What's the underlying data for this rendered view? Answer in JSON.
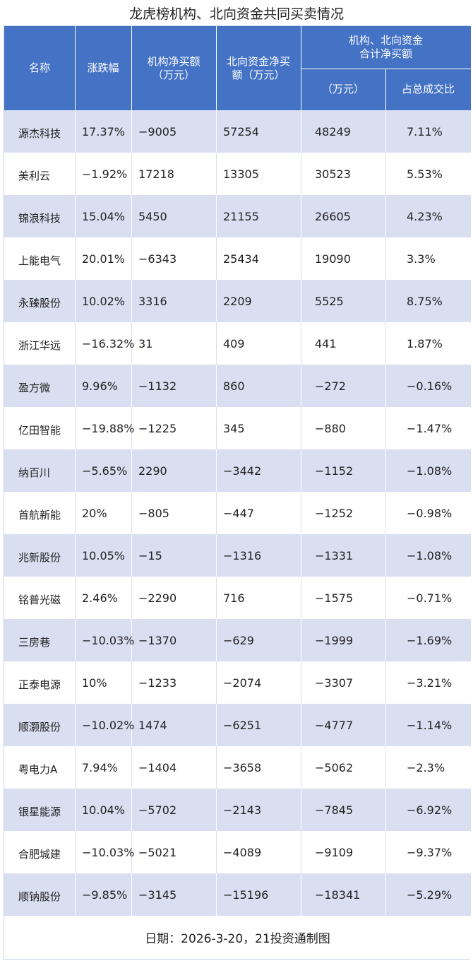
{
  "title": "龙虎榜机构、北向资金共同买卖情况",
  "header": {
    "name": "名称",
    "change": "涨跌幅",
    "inst_net": "机构净买额\n（万元）",
    "north_net": "北向资金净买\n额（万元）",
    "combined_group": "机构、北向资金\n合计净买额",
    "combined_amount": "（万元）",
    "combined_ratio": "占总成交比"
  },
  "rows": [
    {
      "name": "源杰科技",
      "change": "17.37%",
      "inst": "−9005",
      "north": "57254",
      "total": "48249",
      "ratio": "7.11%"
    },
    {
      "name": "美利云",
      "change": "−1.92%",
      "inst": "17218",
      "north": "13305",
      "total": "30523",
      "ratio": "5.53%"
    },
    {
      "name": "锦浪科技",
      "change": "15.04%",
      "inst": "5450",
      "north": "21155",
      "total": "26605",
      "ratio": "4.23%"
    },
    {
      "name": "上能电气",
      "change": "20.01%",
      "inst": "−6343",
      "north": "25434",
      "total": "19090",
      "ratio": "3.3%"
    },
    {
      "name": "永臻股份",
      "change": "10.02%",
      "inst": "3316",
      "north": "2209",
      "total": "5525",
      "ratio": "8.75%"
    },
    {
      "name": "浙江华远",
      "change": "−16.32%",
      "inst": "31",
      "north": "409",
      "total": "441",
      "ratio": "1.87%"
    },
    {
      "name": "盈方微",
      "change": "9.96%",
      "inst": "−1132",
      "north": "860",
      "total": "−272",
      "ratio": "−0.16%"
    },
    {
      "name": "亿田智能",
      "change": "−19.88%",
      "inst": "−1225",
      "north": "345",
      "total": "−880",
      "ratio": "−1.47%"
    },
    {
      "name": "纳百川",
      "change": "−5.65%",
      "inst": "2290",
      "north": "−3442",
      "total": "−1152",
      "ratio": "−1.08%"
    },
    {
      "name": "首航新能",
      "change": "20%",
      "inst": "−805",
      "north": "−447",
      "total": "−1252",
      "ratio": "−0.98%"
    },
    {
      "name": "兆新股份",
      "change": "10.05%",
      "inst": "−15",
      "north": "−1316",
      "total": "−1331",
      "ratio": "−1.08%"
    },
    {
      "name": "铭普光磁",
      "change": "2.46%",
      "inst": "−2290",
      "north": "716",
      "total": "−1575",
      "ratio": "−0.71%"
    },
    {
      "name": "三房巷",
      "change": "−10.03%",
      "inst": "−1370",
      "north": "−629",
      "total": "−1999",
      "ratio": "−1.69%"
    },
    {
      "name": "正泰电源",
      "change": "10%",
      "inst": "−1233",
      "north": "−2074",
      "total": "−3307",
      "ratio": "−3.21%"
    },
    {
      "name": "顺灏股份",
      "change": "−10.02%",
      "inst": "1474",
      "north": "−6251",
      "total": "−4777",
      "ratio": "−1.14%"
    },
    {
      "name": "粤电力A",
      "change": "7.94%",
      "inst": "−1404",
      "north": "−3658",
      "total": "−5062",
      "ratio": "−2.3%"
    },
    {
      "name": "银星能源",
      "change": "10.04%",
      "inst": "−5702",
      "north": "−2143",
      "total": "−7845",
      "ratio": "−6.92%"
    },
    {
      "name": "合肥城建",
      "change": "−10.03%",
      "inst": "−5021",
      "north": "−4089",
      "total": "−9109",
      "ratio": "−9.37%"
    },
    {
      "name": "顺钠股份",
      "change": "−9.85%",
      "inst": "−3145",
      "north": "−15196",
      "total": "−18341",
      "ratio": "−5.29%"
    }
  ],
  "footer": "日期：2026-3-20，21投资通制图",
  "colors": {
    "header_bg": "#4472c4",
    "stripe": "#d9def1"
  }
}
